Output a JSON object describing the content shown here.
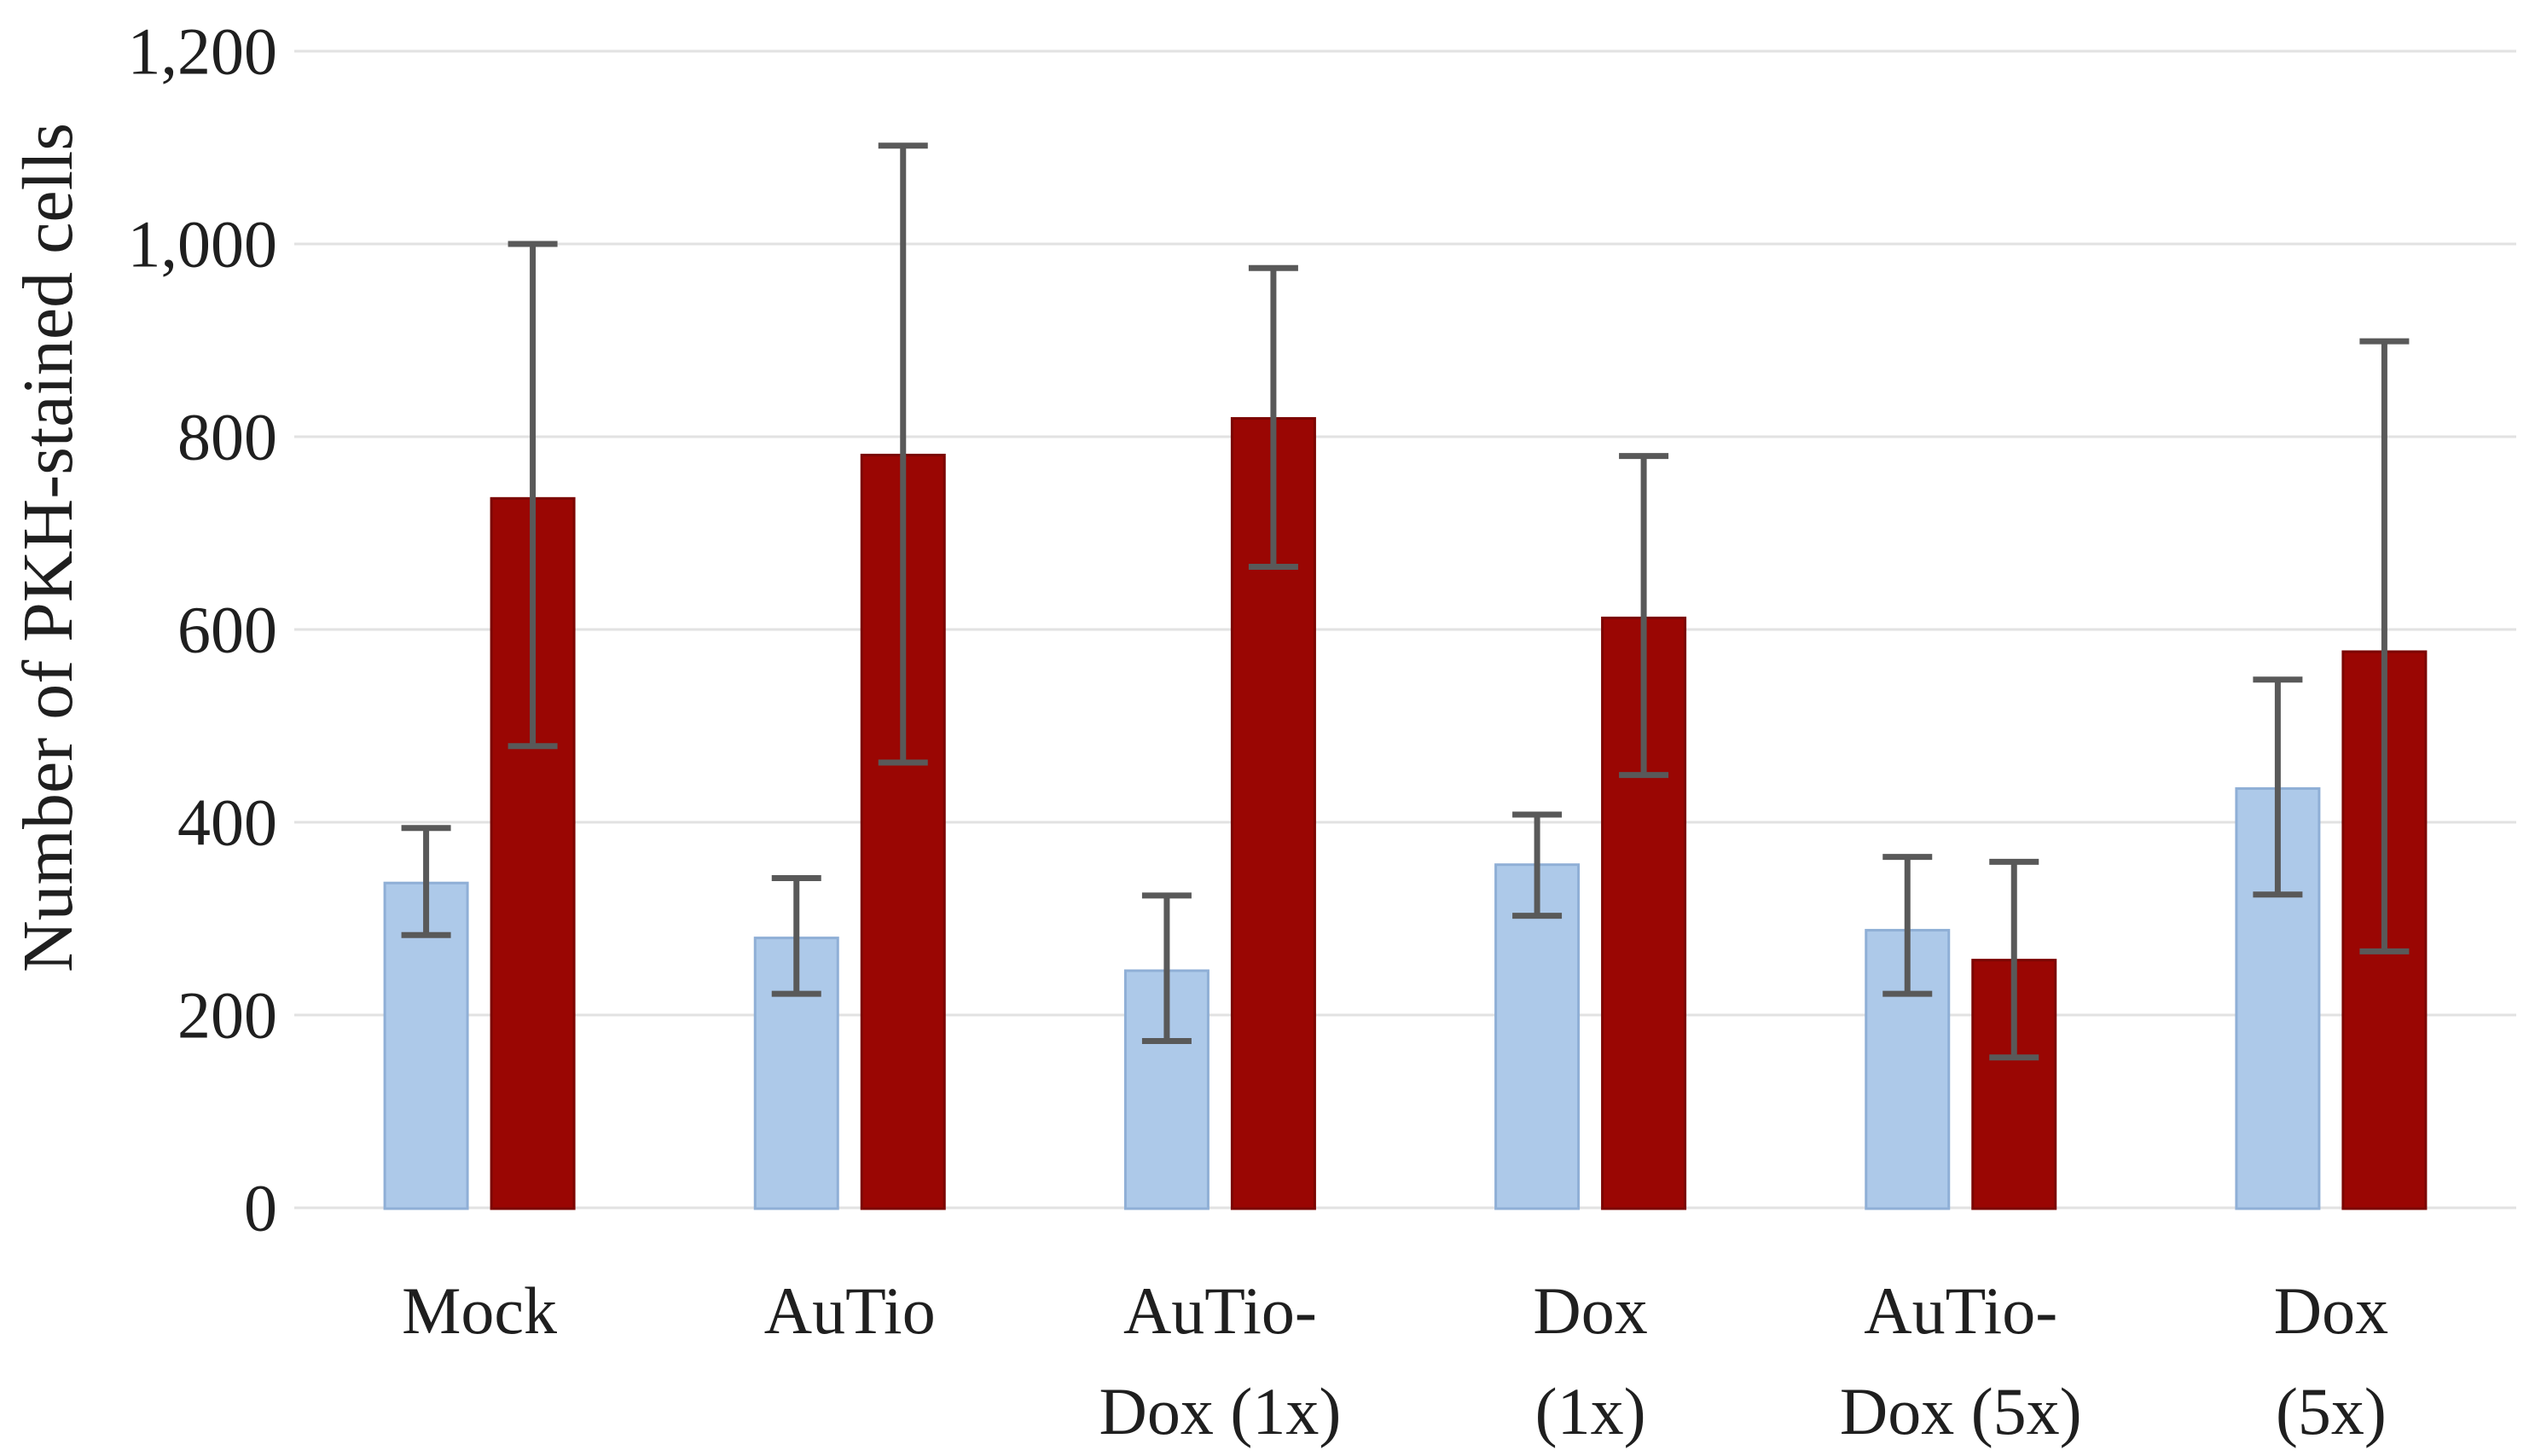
{
  "chart_data": {
    "type": "bar",
    "title": "",
    "xlabel": "",
    "ylabel": "Number of PKH-stained cells",
    "ylim": [
      0,
      1200
    ],
    "ytick_step": 200,
    "yticks": [
      0,
      200,
      400,
      600,
      800,
      1000,
      1200
    ],
    "ytick_labels": [
      "0",
      "200",
      "400",
      "600",
      "800",
      "1,000",
      "1,200"
    ],
    "grid": true,
    "legend": "none",
    "categories": [
      [
        "Mock"
      ],
      [
        "AuTio"
      ],
      [
        "AuTio-",
        "Dox (1x)"
      ],
      [
        "Dox",
        "(1x)"
      ],
      [
        "AuTio-",
        "Dox (5x)"
      ],
      [
        "Dox",
        "(5x)"
      ]
    ],
    "series": [
      {
        "name": "blue",
        "color": "#adc9e9",
        "border_color": "#8fafd6",
        "values": [
          337,
          280,
          246,
          356,
          288,
          435
        ],
        "error_low": [
          283,
          222,
          173,
          303,
          222,
          325
        ],
        "error_high": [
          394,
          342,
          324,
          408,
          364,
          548
        ]
      },
      {
        "name": "red",
        "color": "#9a0603",
        "border_color": "#7c0502",
        "values": [
          736,
          781,
          819,
          612,
          257,
          577
        ],
        "error_low": [
          479,
          462,
          665,
          449,
          156,
          266
        ],
        "error_high": [
          1000,
          1102,
          975,
          780,
          359,
          899
        ]
      }
    ],
    "error_bar_color": "#595959",
    "gridline_color": "#e2e2e2",
    "text_color": "#1f1f1f",
    "background_color": "#ffffff"
  }
}
